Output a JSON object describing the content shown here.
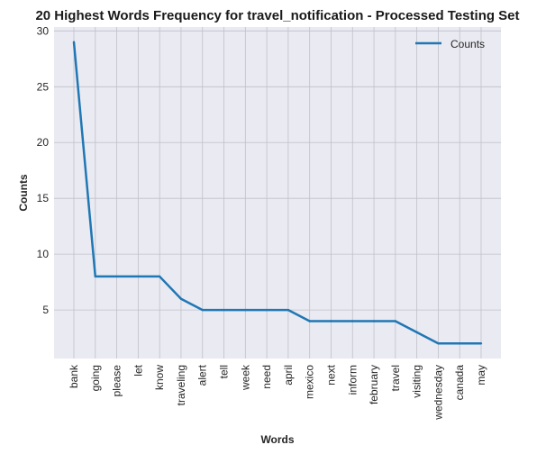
{
  "chart_data": {
    "type": "line",
    "title": "20 Highest Words Frequency for travel_notification - Processed Testing Set",
    "xlabel": "Words",
    "ylabel": "Counts",
    "categories": [
      "bank",
      "going",
      "please",
      "let",
      "know",
      "traveling",
      "alert",
      "tell",
      "week",
      "need",
      "april",
      "mexico",
      "next",
      "inform",
      "february",
      "travel",
      "visiting",
      "wednesday",
      "canada",
      "may"
    ],
    "series": [
      {
        "name": "Counts",
        "values": [
          29,
          8,
          8,
          8,
          8,
          6,
          5,
          5,
          5,
          5,
          5,
          4,
          4,
          4,
          4,
          4,
          3,
          2,
          2,
          2
        ]
      }
    ],
    "ylim": [
      0.65,
      30.35
    ],
    "yticks": [
      5,
      10,
      15,
      20,
      25,
      30
    ],
    "grid": true,
    "legend_position": "top-right",
    "colors": {
      "line": "#1f77b4",
      "plot_bg": "#eaeaf2",
      "grid": "#c0c0c8"
    }
  }
}
